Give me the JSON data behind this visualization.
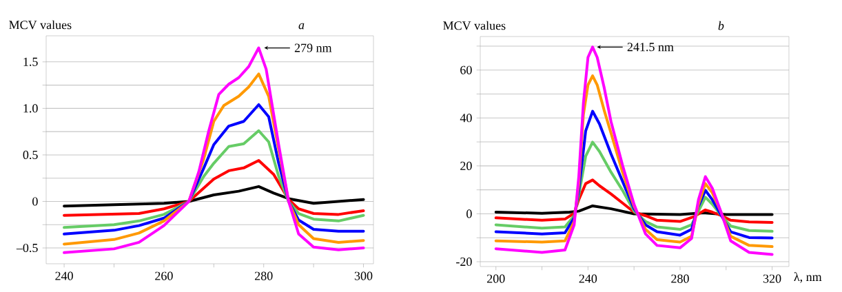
{
  "chart_data": [
    {
      "type": "line",
      "title": "a",
      "ylabel": "MCV values",
      "grid": "y",
      "xlim": [
        236.4,
        302
      ],
      "xticks": [
        240,
        {
          "value": 250,
          "label": null
        },
        260,
        {
          "value": 270,
          "label": null
        },
        280,
        {
          "value": 290,
          "label": null
        },
        300
      ],
      "ylim": [
        -0.67,
        1.78
      ],
      "yticks": [
        {
          "value": -0.5,
          "label": "–0.5"
        },
        {
          "value": -0.25,
          "label": null
        },
        0,
        {
          "value": 0.25,
          "label": null
        },
        0.5,
        {
          "value": 0.75,
          "label": null
        },
        {
          "value": 1.0,
          "label": "1.0"
        },
        {
          "value": 1.25,
          "label": null
        },
        1.5
      ],
      "annotations": [
        {
          "text": "279 nm",
          "x": 279,
          "y": 1.65
        }
      ],
      "series": [
        {
          "color": "#000000",
          "x": [
            240,
            260,
            265,
            270,
            275,
            279,
            282,
            285,
            290,
            300
          ],
          "values": [
            -0.05,
            -0.02,
            0,
            0.07,
            0.11,
            0.16,
            0.09,
            0.03,
            -0.02,
            0.02
          ]
        },
        {
          "color": "#ff0000",
          "x": [
            240,
            255,
            260,
            265,
            270,
            273,
            276,
            279,
            282,
            285,
            287,
            290,
            295,
            300
          ],
          "values": [
            -0.15,
            -0.13,
            -0.08,
            0,
            0.24,
            0.33,
            0.36,
            0.44,
            0.29,
            0.02,
            -0.08,
            -0.13,
            -0.14,
            -0.1
          ]
        },
        {
          "color": "#66cc66",
          "x": [
            240,
            250,
            255,
            260,
            265,
            268,
            270,
            273,
            276,
            279,
            281,
            283,
            285,
            287,
            290,
            295,
            300
          ],
          "values": [
            -0.28,
            -0.25,
            -0.21,
            -0.14,
            0,
            0.27,
            0.41,
            0.59,
            0.62,
            0.76,
            0.64,
            0.27,
            0,
            -0.13,
            -0.19,
            -0.21,
            -0.15
          ]
        },
        {
          "color": "#0000ff",
          "x": [
            240,
            250,
            255,
            260,
            265,
            268,
            270,
            273,
            276,
            279,
            281,
            283,
            285,
            287,
            290,
            295,
            300
          ],
          "values": [
            -0.35,
            -0.31,
            -0.26,
            -0.18,
            0,
            0.36,
            0.61,
            0.81,
            0.86,
            1.04,
            0.91,
            0.41,
            0,
            -0.2,
            -0.3,
            -0.32,
            -0.32
          ]
        },
        {
          "color": "#ff9900",
          "x": [
            240,
            250,
            255,
            260,
            265,
            268,
            270,
            272,
            275,
            277,
            279,
            281,
            283,
            285,
            287,
            290,
            295,
            300
          ],
          "values": [
            -0.46,
            -0.41,
            -0.34,
            -0.21,
            0,
            0.46,
            0.86,
            1.03,
            1.13,
            1.23,
            1.37,
            1.13,
            0.56,
            0,
            -0.25,
            -0.4,
            -0.44,
            -0.42
          ]
        },
        {
          "color": "#ff00ff",
          "x": [
            240,
            250,
            255,
            260,
            265,
            267,
            269,
            271,
            273,
            275,
            277,
            279,
            280.5,
            283,
            285,
            287,
            290,
            295,
            300
          ],
          "values": [
            -0.55,
            -0.51,
            -0.44,
            -0.26,
            0,
            0.32,
            0.76,
            1.15,
            1.26,
            1.33,
            1.45,
            1.65,
            1.42,
            0.61,
            0,
            -0.35,
            -0.49,
            -0.52,
            -0.5
          ]
        }
      ]
    },
    {
      "type": "line",
      "title": "b",
      "ylabel": "MCV values",
      "xlabel": "λ, nm",
      "grid": "y",
      "xlim": [
        193.2,
        327.3
      ],
      "xticks": [
        200,
        {
          "value": 220,
          "label": null
        },
        240,
        {
          "value": 260,
          "label": null
        },
        280,
        {
          "value": 300,
          "label": null
        },
        320
      ],
      "ylim": [
        -22,
        74
      ],
      "yticks": [
        -20,
        {
          "value": -10,
          "label": null
        },
        0,
        {
          "value": 10,
          "label": null
        },
        20,
        {
          "value": 30,
          "label": null
        },
        40,
        {
          "value": 50,
          "label": null
        },
        60,
        {
          "value": 70,
          "label": null
        }
      ],
      "annotations": [
        {
          "text": "241.5 nm",
          "x": 241.5,
          "y": 69.6
        }
      ],
      "series": [
        {
          "color": "#000000",
          "x": [
            200,
            220,
            232,
            236,
            242,
            250,
            260,
            280,
            290,
            300,
            320
          ],
          "values": [
            0.7,
            0.2,
            0.7,
            1.1,
            3.3,
            2.1,
            0,
            -0.3,
            0.4,
            -0.3,
            -0.3
          ]
        },
        {
          "color": "#ff0000",
          "x": [
            200,
            220,
            230,
            234,
            236,
            239,
            242,
            245,
            250,
            255,
            260,
            265,
            270,
            280,
            286,
            290,
            291,
            294,
            298,
            302,
            310,
            320
          ],
          "values": [
            -1.7,
            -2.7,
            -2.2,
            0.2,
            5.9,
            12.6,
            14.1,
            11.7,
            8.3,
            4.5,
            0.7,
            -0.8,
            -2.7,
            -3.2,
            -1.2,
            1.1,
            1.6,
            0.7,
            -0.8,
            -2.7,
            -3.4,
            -3.6
          ]
        },
        {
          "color": "#66cc66",
          "x": [
            200,
            220,
            230,
            234,
            236,
            239,
            242,
            245,
            250,
            255,
            260,
            265,
            270,
            280,
            285,
            288,
            291,
            294,
            298,
            302,
            310,
            320
          ],
          "values": [
            -4.6,
            -6,
            -5.5,
            -0.8,
            7.8,
            24,
            29.9,
            26,
            17.4,
            9.8,
            1.1,
            -3.2,
            -5.5,
            -6.5,
            -4.6,
            1.1,
            6.9,
            4,
            -0.8,
            -5.1,
            -7,
            -7.3
          ]
        },
        {
          "color": "#0000ff",
          "x": [
            200,
            220,
            230,
            234,
            236,
            239,
            242,
            245,
            250,
            255,
            260,
            265,
            270,
            280,
            285,
            288,
            291,
            294,
            298,
            302,
            310,
            320
          ],
          "values": [
            -7.5,
            -8.4,
            -7.9,
            -1.7,
            9.8,
            34.6,
            42.8,
            37.5,
            25,
            13.6,
            2.1,
            -4.6,
            -7.5,
            -8.9,
            -6.5,
            3.1,
            9.8,
            5.9,
            -0.8,
            -7.5,
            -9.9,
            -10.1
          ]
        },
        {
          "color": "#ff9900",
          "x": [
            200,
            220,
            230,
            234,
            236,
            238,
            240,
            242,
            244,
            247,
            250,
            255,
            260,
            265,
            270,
            280,
            285,
            288,
            291,
            294,
            298,
            302,
            310,
            320
          ],
          "values": [
            -11.3,
            -11.8,
            -11.3,
            -3.2,
            12.6,
            41.3,
            53.8,
            57.6,
            53.8,
            43.3,
            33.7,
            17.4,
            3.1,
            -6.5,
            -10.8,
            -11.8,
            -9.4,
            4,
            12.6,
            8.8,
            0.2,
            -9.4,
            -13.2,
            -13.7
          ]
        },
        {
          "color": "#ff00ff",
          "x": [
            200,
            220,
            230,
            234,
            236,
            238,
            240,
            242,
            244,
            247,
            250,
            255,
            260,
            265,
            270,
            280,
            285,
            288,
            291,
            294,
            298,
            302,
            310,
            320
          ],
          "values": [
            -14.6,
            -16.1,
            -15.1,
            -4.6,
            15.5,
            46.1,
            65.3,
            69.6,
            65.3,
            52.8,
            38.5,
            20.3,
            4,
            -8.4,
            -13.2,
            -14.2,
            -10.3,
            5.9,
            15.5,
            10.7,
            0.2,
            -11.3,
            -16.1,
            -17
          ]
        }
      ]
    }
  ]
}
